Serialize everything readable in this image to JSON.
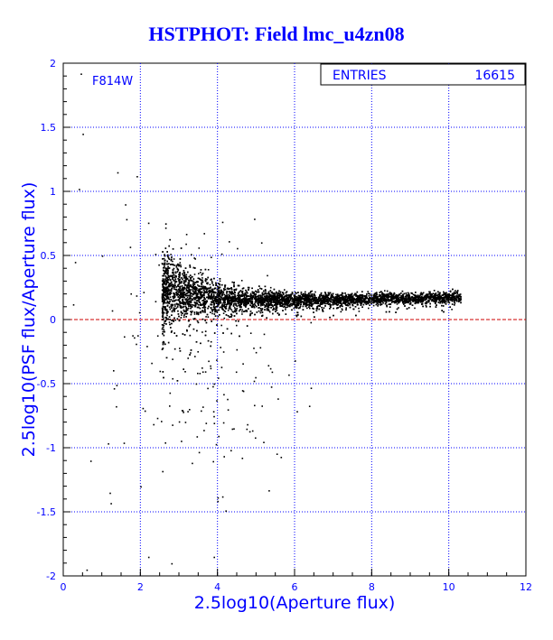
{
  "chart_data": {
    "type": "scatter",
    "title": "HSTPHOT: Field lmc_u4zn08",
    "xlabel": "2.5log10(Aperture flux)",
    "ylabel": "2.5log10(PSF flux/Aperture flux)",
    "xlim": [
      0,
      12
    ],
    "ylim": [
      -2,
      2
    ],
    "x_ticks": [
      0,
      2,
      4,
      6,
      8,
      10,
      12
    ],
    "y_ticks": [
      -2,
      -1.5,
      -1,
      -0.5,
      0,
      0.5,
      1,
      1.5,
      2
    ],
    "grid": true,
    "reference_line_y": 0,
    "filter_label": "F814W",
    "stats_box": {
      "label": "ENTRIES",
      "value": "16615"
    },
    "colors": {
      "text": "#0000ff",
      "grid": "#0000ff",
      "points": "#000000",
      "zero_line": "#cc0000"
    },
    "points": {
      "description_source": "dense locus of stars",
      "ridge": [
        {
          "x": 2.6,
          "y": 0.28
        },
        {
          "x": 3.0,
          "y": 0.22
        },
        {
          "x": 4.0,
          "y": 0.17
        },
        {
          "x": 5.0,
          "y": 0.16
        },
        {
          "x": 6.0,
          "y": 0.16
        },
        {
          "x": 7.0,
          "y": 0.16
        },
        {
          "x": 8.0,
          "y": 0.17
        },
        {
          "x": 9.0,
          "y": 0.17
        },
        {
          "x": 10.2,
          "y": 0.18
        }
      ],
      "outliers": [
        {
          "x": 0.45,
          "y": 1.92
        },
        {
          "x": 0.5,
          "y": 1.45
        },
        {
          "x": 0.4,
          "y": 1.02
        },
        {
          "x": 1.4,
          "y": 1.15
        },
        {
          "x": 1.9,
          "y": 1.12
        },
        {
          "x": 0.7,
          "y": -1.1
        },
        {
          "x": 1.2,
          "y": -1.35
        },
        {
          "x": 0.6,
          "y": -1.95
        },
        {
          "x": 2.0,
          "y": -1.3
        },
        {
          "x": 2.2,
          "y": -1.85
        },
        {
          "x": 2.8,
          "y": -1.9
        },
        {
          "x": 3.9,
          "y": -1.85
        },
        {
          "x": 0.3,
          "y": 0.45
        },
        {
          "x": 0.25,
          "y": 0.12
        },
        {
          "x": 1.0,
          "y": 0.5
        },
        {
          "x": 1.6,
          "y": 0.9
        }
      ]
    }
  }
}
